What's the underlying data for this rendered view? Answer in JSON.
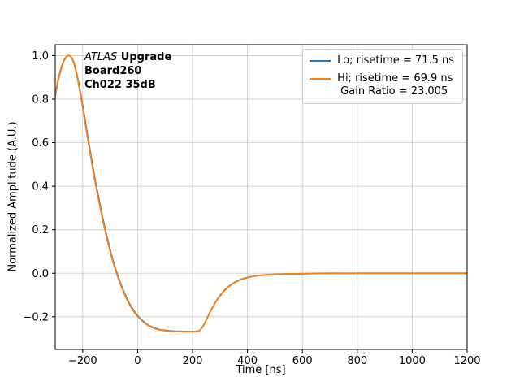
{
  "annotation": {
    "line1_italic": "ATLAS",
    "line1_bold": " Upgrade",
    "line2": "Board260",
    "line3": "Ch022 35dB"
  },
  "chart_data": {
    "type": "line",
    "title": "",
    "xlabel": "Time [ns]",
    "ylabel": "Normalized Amplitude (A.U.)",
    "xlim": [
      -300,
      1200
    ],
    "ylim": [
      -0.35,
      1.05
    ],
    "xticks": [
      -200,
      0,
      200,
      400,
      600,
      800,
      1000,
      1200
    ],
    "xtick_labels": [
      "−200",
      "0",
      "200",
      "400",
      "600",
      "800",
      "1000",
      "1200"
    ],
    "yticks": [
      -0.2,
      0.0,
      0.2,
      0.4,
      0.6,
      0.8,
      1.0
    ],
    "ytick_labels": [
      "−0.2",
      "0.0",
      "0.2",
      "0.4",
      "0.6",
      "0.8",
      "1.0"
    ],
    "grid": true,
    "grid_color": "#c9c9c9",
    "legend": {
      "position": "upper right",
      "entries": [
        {
          "name": "Lo",
          "label": "Lo; risetime = 71.5 ns",
          "color": "#1f77b4"
        },
        {
          "name": "Hi",
          "label": "Hi; risetime = 69.9 ns",
          "label2": "Gain Ratio = 23.005",
          "color": "#ff7f0e"
        }
      ]
    },
    "x": [
      -300,
      -292,
      -284,
      -276,
      -268,
      -260,
      -252,
      -248,
      -240,
      -232,
      -224,
      -216,
      -208,
      -200,
      -192,
      -184,
      -176,
      -168,
      -160,
      -152,
      -144,
      -136,
      -128,
      -120,
      -112,
      -104,
      -96,
      -88,
      -80,
      -72,
      -64,
      -56,
      -48,
      -40,
      -32,
      -24,
      -16,
      -8,
      0,
      16,
      32,
      48,
      64,
      80,
      100,
      120,
      140,
      160,
      180,
      200,
      212,
      222,
      230,
      238,
      246,
      254,
      262,
      272,
      282,
      292,
      302,
      315,
      330,
      345,
      360,
      380,
      400,
      430,
      460,
      500,
      550,
      600,
      650,
      700,
      800,
      900,
      1000,
      1100,
      1200
    ],
    "series": [
      {
        "name": "Lo",
        "color": "#1f77b4",
        "values": [
          0.815,
          0.87,
          0.915,
          0.95,
          0.978,
          0.993,
          1.0,
          1.0,
          0.991,
          0.968,
          0.93,
          0.882,
          0.828,
          0.77,
          0.71,
          0.646,
          0.586,
          0.526,
          0.466,
          0.41,
          0.36,
          0.309,
          0.259,
          0.213,
          0.168,
          0.128,
          0.087,
          0.052,
          0.018,
          -0.012,
          -0.041,
          -0.067,
          -0.091,
          -0.113,
          -0.134,
          -0.152,
          -0.168,
          -0.183,
          -0.195,
          -0.216,
          -0.233,
          -0.245,
          -0.253,
          -0.259,
          -0.263,
          -0.265,
          -0.267,
          -0.267,
          -0.268,
          -0.268,
          -0.267,
          -0.265,
          -0.258,
          -0.244,
          -0.225,
          -0.204,
          -0.183,
          -0.158,
          -0.136,
          -0.116,
          -0.099,
          -0.08,
          -0.062,
          -0.048,
          -0.037,
          -0.026,
          -0.019,
          -0.012,
          -0.008,
          -0.005,
          -0.003,
          -0.002,
          -0.001,
          0.0,
          0.0,
          0.0,
          0.0,
          0.0,
          0.0
        ]
      },
      {
        "name": "Hi",
        "color": "#ff7f0e",
        "values": [
          0.82,
          0.875,
          0.92,
          0.955,
          0.98,
          0.995,
          1.0,
          1.0,
          0.99,
          0.965,
          0.925,
          0.875,
          0.82,
          0.76,
          0.7,
          0.635,
          0.575,
          0.515,
          0.455,
          0.4,
          0.35,
          0.3,
          0.25,
          0.205,
          0.16,
          0.12,
          0.08,
          0.045,
          0.012,
          -0.018,
          -0.046,
          -0.072,
          -0.096,
          -0.118,
          -0.138,
          -0.156,
          -0.172,
          -0.186,
          -0.198,
          -0.219,
          -0.235,
          -0.247,
          -0.255,
          -0.26,
          -0.264,
          -0.266,
          -0.267,
          -0.268,
          -0.268,
          -0.268,
          -0.268,
          -0.266,
          -0.259,
          -0.245,
          -0.226,
          -0.205,
          -0.184,
          -0.159,
          -0.137,
          -0.117,
          -0.1,
          -0.081,
          -0.063,
          -0.049,
          -0.038,
          -0.027,
          -0.02,
          -0.012,
          -0.008,
          -0.005,
          -0.003,
          -0.002,
          -0.001,
          -0.001,
          0.0,
          0.0,
          0.0,
          0.0,
          0.0
        ]
      }
    ]
  }
}
